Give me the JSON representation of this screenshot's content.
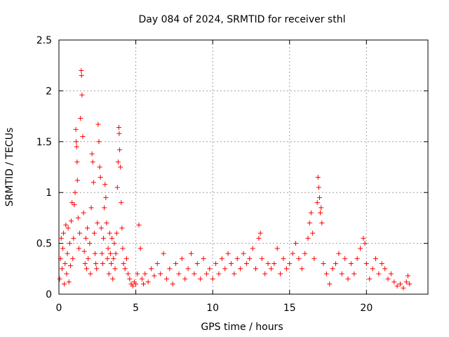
{
  "chart_data": {
    "type": "scatter",
    "title": "Day 084 of 2024, SRMTID for receiver sthl",
    "xlabel": "GPS time / hours",
    "ylabel": "SRMTID / TECUs",
    "xlim": [
      0,
      24
    ],
    "ylim": [
      0,
      2.5
    ],
    "xticks": [
      0,
      5,
      10,
      15,
      20
    ],
    "xtick_labels": [
      "0",
      "5",
      "10",
      "15",
      "20"
    ],
    "yticks": [
      0,
      0.5,
      1,
      1.5,
      2,
      2.5
    ],
    "ytick_labels": [
      "0",
      "0.5",
      "1",
      "1.5",
      "2",
      "2.5"
    ],
    "grid": true,
    "marker": "+",
    "series": [
      {
        "name": "SRMTID",
        "color": "#ff0000",
        "points": [
          [
            0.05,
            0.15
          ],
          [
            0.1,
            0.35
          ],
          [
            0.15,
            0.55
          ],
          [
            0.2,
            0.25
          ],
          [
            0.25,
            0.45
          ],
          [
            0.3,
            0.6
          ],
          [
            0.35,
            0.1
          ],
          [
            0.4,
            0.3
          ],
          [
            0.45,
            0.68
          ],
          [
            0.5,
            0.2
          ],
          [
            0.55,
            0.4
          ],
          [
            0.6,
            0.65
          ],
          [
            0.65,
            0.12
          ],
          [
            0.7,
            0.5
          ],
          [
            0.75,
            0.28
          ],
          [
            0.8,
            0.72
          ],
          [
            0.85,
            0.9
          ],
          [
            0.9,
            0.35
          ],
          [
            0.95,
            0.55
          ],
          [
            1.0,
            0.88
          ],
          [
            1.05,
            1.0
          ],
          [
            1.1,
            1.62
          ],
          [
            1.12,
            1.5
          ],
          [
            1.15,
            1.45
          ],
          [
            1.18,
            1.3
          ],
          [
            1.2,
            1.12
          ],
          [
            1.25,
            0.75
          ],
          [
            1.3,
            0.45
          ],
          [
            1.35,
            0.6
          ],
          [
            1.4,
            1.73
          ],
          [
            1.45,
            2.2
          ],
          [
            1.47,
            2.15
          ],
          [
            1.5,
            1.96
          ],
          [
            1.55,
            1.55
          ],
          [
            1.6,
            0.8
          ],
          [
            1.65,
            0.42
          ],
          [
            1.7,
            0.3
          ],
          [
            1.75,
            0.55
          ],
          [
            1.8,
            0.25
          ],
          [
            1.85,
            0.65
          ],
          [
            1.9,
            0.35
          ],
          [
            2.0,
            0.5
          ],
          [
            2.05,
            0.2
          ],
          [
            2.1,
            0.85
          ],
          [
            2.15,
            1.38
          ],
          [
            2.2,
            1.3
          ],
          [
            2.25,
            1.1
          ],
          [
            2.3,
            0.6
          ],
          [
            2.35,
            0.4
          ],
          [
            2.4,
            0.3
          ],
          [
            2.45,
            0.25
          ],
          [
            2.5,
            0.7
          ],
          [
            2.55,
            1.67
          ],
          [
            2.6,
            1.5
          ],
          [
            2.65,
            1.25
          ],
          [
            2.7,
            1.15
          ],
          [
            2.75,
            0.65
          ],
          [
            2.8,
            0.4
          ],
          [
            2.85,
            0.3
          ],
          [
            2.9,
            0.55
          ],
          [
            2.95,
            0.85
          ],
          [
            3.0,
            1.08
          ],
          [
            3.05,
            0.95
          ],
          [
            3.1,
            0.7
          ],
          [
            3.15,
            0.35
          ],
          [
            3.2,
            0.45
          ],
          [
            3.25,
            0.2
          ],
          [
            3.3,
            0.6
          ],
          [
            3.35,
            0.4
          ],
          [
            3.4,
            0.3
          ],
          [
            3.45,
            0.55
          ],
          [
            3.5,
            0.15
          ],
          [
            3.55,
            0.35
          ],
          [
            3.6,
            0.5
          ],
          [
            3.65,
            0.25
          ],
          [
            3.7,
            0.4
          ],
          [
            3.75,
            0.6
          ],
          [
            3.8,
            1.05
          ],
          [
            3.85,
            1.3
          ],
          [
            3.9,
            1.64
          ],
          [
            3.92,
            1.58
          ],
          [
            3.95,
            1.42
          ],
          [
            4.0,
            1.25
          ],
          [
            4.05,
            0.9
          ],
          [
            4.1,
            0.65
          ],
          [
            4.15,
            0.45
          ],
          [
            4.2,
            0.3
          ],
          [
            4.3,
            0.25
          ],
          [
            4.4,
            0.35
          ],
          [
            4.5,
            0.2
          ],
          [
            4.6,
            0.15
          ],
          [
            4.7,
            0.1
          ],
          [
            4.8,
            0.08
          ],
          [
            4.9,
            0.12
          ],
          [
            5.0,
            0.1
          ],
          [
            5.1,
            0.2
          ],
          [
            5.2,
            0.68
          ],
          [
            5.3,
            0.45
          ],
          [
            5.4,
            0.15
          ],
          [
            5.5,
            0.1
          ],
          [
            5.6,
            0.2
          ],
          [
            5.8,
            0.12
          ],
          [
            6.0,
            0.25
          ],
          [
            6.2,
            0.18
          ],
          [
            6.4,
            0.3
          ],
          [
            6.6,
            0.2
          ],
          [
            6.8,
            0.4
          ],
          [
            7.0,
            0.15
          ],
          [
            7.2,
            0.25
          ],
          [
            7.4,
            0.1
          ],
          [
            7.6,
            0.3
          ],
          [
            7.8,
            0.2
          ],
          [
            8.0,
            0.35
          ],
          [
            8.2,
            0.15
          ],
          [
            8.4,
            0.25
          ],
          [
            8.6,
            0.4
          ],
          [
            8.8,
            0.2
          ],
          [
            9.0,
            0.3
          ],
          [
            9.2,
            0.15
          ],
          [
            9.4,
            0.35
          ],
          [
            9.6,
            0.2
          ],
          [
            9.8,
            0.25
          ],
          [
            10.0,
            0.15
          ],
          [
            10.2,
            0.3
          ],
          [
            10.4,
            0.2
          ],
          [
            10.6,
            0.35
          ],
          [
            10.8,
            0.25
          ],
          [
            11.0,
            0.4
          ],
          [
            11.2,
            0.3
          ],
          [
            11.4,
            0.2
          ],
          [
            11.6,
            0.35
          ],
          [
            11.8,
            0.25
          ],
          [
            12.0,
            0.4
          ],
          [
            12.2,
            0.3
          ],
          [
            12.4,
            0.35
          ],
          [
            12.6,
            0.45
          ],
          [
            12.8,
            0.25
          ],
          [
            13.0,
            0.55
          ],
          [
            13.1,
            0.6
          ],
          [
            13.2,
            0.35
          ],
          [
            13.4,
            0.2
          ],
          [
            13.6,
            0.3
          ],
          [
            13.8,
            0.25
          ],
          [
            14.0,
            0.3
          ],
          [
            14.2,
            0.45
          ],
          [
            14.4,
            0.2
          ],
          [
            14.6,
            0.35
          ],
          [
            14.8,
            0.25
          ],
          [
            15.0,
            0.3
          ],
          [
            15.2,
            0.4
          ],
          [
            15.4,
            0.5
          ],
          [
            15.6,
            0.35
          ],
          [
            15.8,
            0.25
          ],
          [
            16.0,
            0.4
          ],
          [
            16.2,
            0.55
          ],
          [
            16.3,
            0.7
          ],
          [
            16.4,
            0.8
          ],
          [
            16.5,
            0.6
          ],
          [
            16.6,
            0.35
          ],
          [
            16.8,
            0.9
          ],
          [
            16.85,
            1.15
          ],
          [
            16.9,
            1.05
          ],
          [
            16.95,
            0.95
          ],
          [
            17.0,
            0.8
          ],
          [
            17.05,
            0.85
          ],
          [
            17.1,
            0.7
          ],
          [
            17.2,
            0.3
          ],
          [
            17.4,
            0.2
          ],
          [
            17.6,
            0.1
          ],
          [
            17.8,
            0.25
          ],
          [
            18.0,
            0.3
          ],
          [
            18.2,
            0.4
          ],
          [
            18.4,
            0.2
          ],
          [
            18.6,
            0.35
          ],
          [
            18.8,
            0.15
          ],
          [
            19.0,
            0.3
          ],
          [
            19.2,
            0.2
          ],
          [
            19.4,
            0.35
          ],
          [
            19.6,
            0.45
          ],
          [
            19.8,
            0.55
          ],
          [
            19.9,
            0.5
          ],
          [
            20.0,
            0.3
          ],
          [
            20.2,
            0.15
          ],
          [
            20.4,
            0.25
          ],
          [
            20.6,
            0.35
          ],
          [
            20.8,
            0.2
          ],
          [
            21.0,
            0.3
          ],
          [
            21.2,
            0.25
          ],
          [
            21.4,
            0.15
          ],
          [
            21.6,
            0.2
          ],
          [
            21.8,
            0.12
          ],
          [
            22.0,
            0.08
          ],
          [
            22.2,
            0.1
          ],
          [
            22.4,
            0.06
          ],
          [
            22.6,
            0.12
          ],
          [
            22.7,
            0.18
          ],
          [
            22.8,
            0.1
          ]
        ]
      }
    ]
  }
}
